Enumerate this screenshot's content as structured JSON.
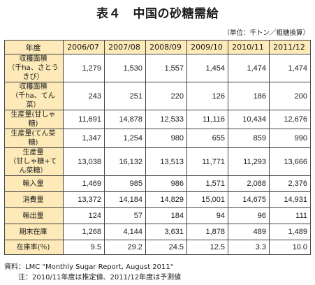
{
  "title": "表４　中国の砂糖需給",
  "unit": "（単位：千トン／粗糖換算）",
  "table": {
    "header_label": "年度",
    "years": [
      "2006/07",
      "2007/08",
      "2008/09",
      "2009/10",
      "2010/11",
      "2011/12"
    ],
    "rows": [
      {
        "label": "収穫面積",
        "sublabel": "（千ha、さとうきび）",
        "values": [
          "1,279",
          "1,530",
          "1,557",
          "1,454",
          "1,474",
          "1,474"
        ]
      },
      {
        "label": "収穫面積",
        "sublabel": "（千ha、てん菜）",
        "values": [
          "243",
          "251",
          "220",
          "126",
          "186",
          "200"
        ]
      },
      {
        "label": "生産量(甘しゃ糖)",
        "sublabel": "",
        "values": [
          "11,691",
          "14,878",
          "12,533",
          "11,116",
          "10,434",
          "12,676"
        ]
      },
      {
        "label": "生産量(てん菜糖)",
        "sublabel": "",
        "values": [
          "1,347",
          "1,254",
          "980",
          "655",
          "859",
          "990"
        ]
      },
      {
        "label": "生産量",
        "sublabel": "（甘しゃ糖+てん菜糖）",
        "values": [
          "13,038",
          "16,132",
          "13,513",
          "11,771",
          "11,293",
          "13,666"
        ]
      },
      {
        "label": "輸入量",
        "sublabel": "",
        "values": [
          "1,469",
          "985",
          "986",
          "1,571",
          "2,088",
          "2,376"
        ]
      },
      {
        "label": "消費量",
        "sublabel": "",
        "values": [
          "13,372",
          "14,184",
          "14,829",
          "15,001",
          "14,675",
          "14,931"
        ]
      },
      {
        "label": "輸出量",
        "sublabel": "",
        "values": [
          "124",
          "57",
          "184",
          "94",
          "96",
          "111"
        ]
      },
      {
        "label": "期末在庫",
        "sublabel": "",
        "values": [
          "1,268",
          "4,144",
          "3,631",
          "1,878",
          "489",
          "1,489"
        ]
      },
      {
        "label": "在庫率(％)",
        "sublabel": "",
        "values": [
          "9.5",
          "29.2",
          "24.5",
          "12.5",
          "3.3",
          "10.0"
        ]
      }
    ]
  },
  "notes": {
    "source": "資料：LMC \"Monthly Sugar Report, August 2011\"",
    "note": "注：2010/11年度は推定値、2011/12年度は予測値"
  },
  "colors": {
    "header_fill": "#fdeab8",
    "border": "#444444"
  }
}
